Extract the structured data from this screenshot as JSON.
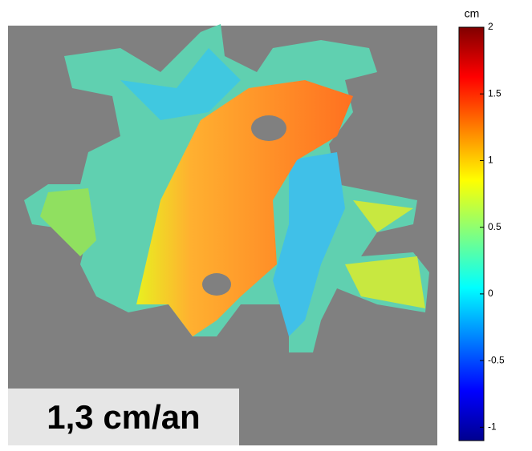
{
  "colorbar": {
    "unit": "cm",
    "lim": [
      -1.1,
      2
    ],
    "ticks": [
      2,
      1.5,
      1,
      0.5,
      0,
      -0.5,
      -1
    ]
  },
  "label": "1,3 cm/an"
}
